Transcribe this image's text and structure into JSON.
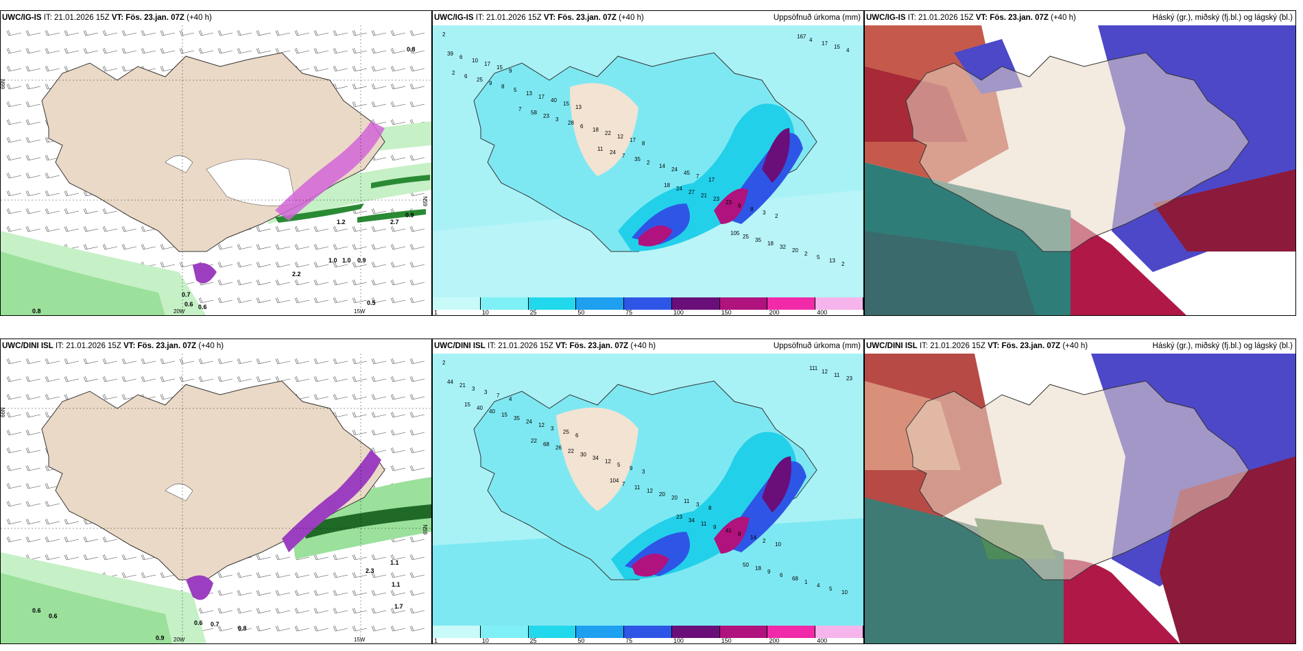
{
  "panels": [
    {
      "id": "p1",
      "model": "UWC/IG-IS",
      "it": "IT: 21.01.2026 15Z",
      "vt_label": "VT:",
      "vt": "Fös. 23.jan. 07Z",
      "lead": "(+40 h)",
      "right_title": "",
      "grid_labels": [
        "66N",
        "65N",
        "20W",
        "15W"
      ]
    },
    {
      "id": "p2",
      "model": "UWC/IG-IS",
      "it": "IT: 21.01.2026 15Z",
      "vt_label": "VT:",
      "vt": "Fös. 23.jan. 07Z",
      "lead": "(+40 h)",
      "right_title": "Uppsöfnuð úrkoma (mm)"
    },
    {
      "id": "p3",
      "model": "UWC/IG-IS",
      "it": "IT: 21.01.2026 15Z",
      "vt_label": "VT:",
      "vt": "Fös. 23.jan. 07Z",
      "lead": "(+40 h)",
      "right_title": "Háský (gr.), miðský (fj.bl.) og lágský (bl.)"
    },
    {
      "id": "p4",
      "model": "UWC/DINI ISL",
      "it": "IT: 21.01.2026 15Z",
      "vt_label": "VT:",
      "vt": "Fös. 23.jan. 07Z",
      "lead": "(+40 h)",
      "right_title": "",
      "grid_labels": [
        "66N",
        "65N",
        "20W",
        "15W"
      ]
    },
    {
      "id": "p5",
      "model": "UWC/DINI ISL",
      "it": "IT: 21.01.2026 15Z",
      "vt_label": "VT:",
      "vt": "Fös. 23.jan. 07Z",
      "lead": "(+40 h)",
      "right_title": "Uppsöfnuð úrkoma (mm)"
    },
    {
      "id": "p6",
      "model": "UWC/DINI ISL",
      "it": "IT: 21.01.2026 15Z",
      "vt_label": "VT:",
      "vt": "Fös. 23.jan. 07Z",
      "lead": "(+40 h)",
      "right_title": "Háský (gr.), miðský (fj.bl.) og lágský (bl.)"
    }
  ],
  "colorbar": {
    "ticks": [
      "1",
      "10",
      "25",
      "50",
      "75",
      "100",
      "150",
      "200",
      "400"
    ],
    "colors": [
      "#c8fafa",
      "#7ef0f6",
      "#22d8ec",
      "#1e9ff0",
      "#2e56e6",
      "#6a0e7a",
      "#b0127e",
      "#f02aa8",
      "#f6b4ec"
    ]
  },
  "colors": {
    "land": "#ead9c6",
    "sea_precip1": "#b8f4f8",
    "sea_precip2": "#30e0ee",
    "precip_green": "#bfefbf",
    "precip_dark": "#1e7a2a",
    "magenta": "#c24ad0",
    "high_cloud": "#8c1a3a",
    "mid_cloud": "#2a7a72",
    "low_cloud": "#4c48c8"
  },
  "p1_labels": [
    "0.8",
    "0.8",
    "0.7",
    "0.6",
    "0.6",
    "0.5",
    "1.0",
    "1.0",
    "0.9",
    "2.7",
    "0.9",
    "1.2",
    "2.2"
  ],
  "p4_labels": [
    "0.6",
    "0.6",
    "0.6",
    "0.7",
    "0.8",
    "0.9",
    "1.1",
    "1.1",
    "1.7",
    "2.3"
  ],
  "p2_values": [
    "2",
    "9",
    "13",
    "8",
    "17",
    "2",
    "2",
    "15",
    "15",
    "17",
    "7",
    "3",
    "13",
    "17",
    "40",
    "12",
    "45",
    "8",
    "5",
    "10",
    "17",
    "22",
    "24",
    "9",
    "2",
    "6",
    "13",
    "18",
    "14",
    "23",
    "20",
    "39",
    "5",
    "6",
    "2",
    "23",
    "32",
    "4",
    "8",
    "28",
    "35",
    "21",
    "18",
    "15",
    "9",
    "3",
    "7",
    "27",
    "35",
    "17",
    "25",
    "23",
    "24",
    "24",
    "25",
    "4",
    "6",
    "58",
    "11",
    "18",
    "105",
    "167",
    "2",
    "7"
  ],
  "p5_values": [
    "2",
    "4",
    "6",
    "3",
    "8",
    "10",
    "10",
    "7",
    "25",
    "9",
    "3",
    "2",
    "5",
    "3",
    "3",
    "5",
    "11",
    "14",
    "4",
    "3",
    "12",
    "12",
    "20",
    "8",
    "1",
    "21",
    "24",
    "34",
    "20",
    "41",
    "68",
    "44",
    "35",
    "30",
    "12",
    "9",
    "6",
    "23",
    "15",
    "22",
    "11",
    "11",
    "9",
    "11",
    "40",
    "26",
    "7",
    "34",
    "18",
    "12",
    "40",
    "68",
    "104",
    "23",
    "50",
    "111",
    "15",
    "22"
  ]
}
